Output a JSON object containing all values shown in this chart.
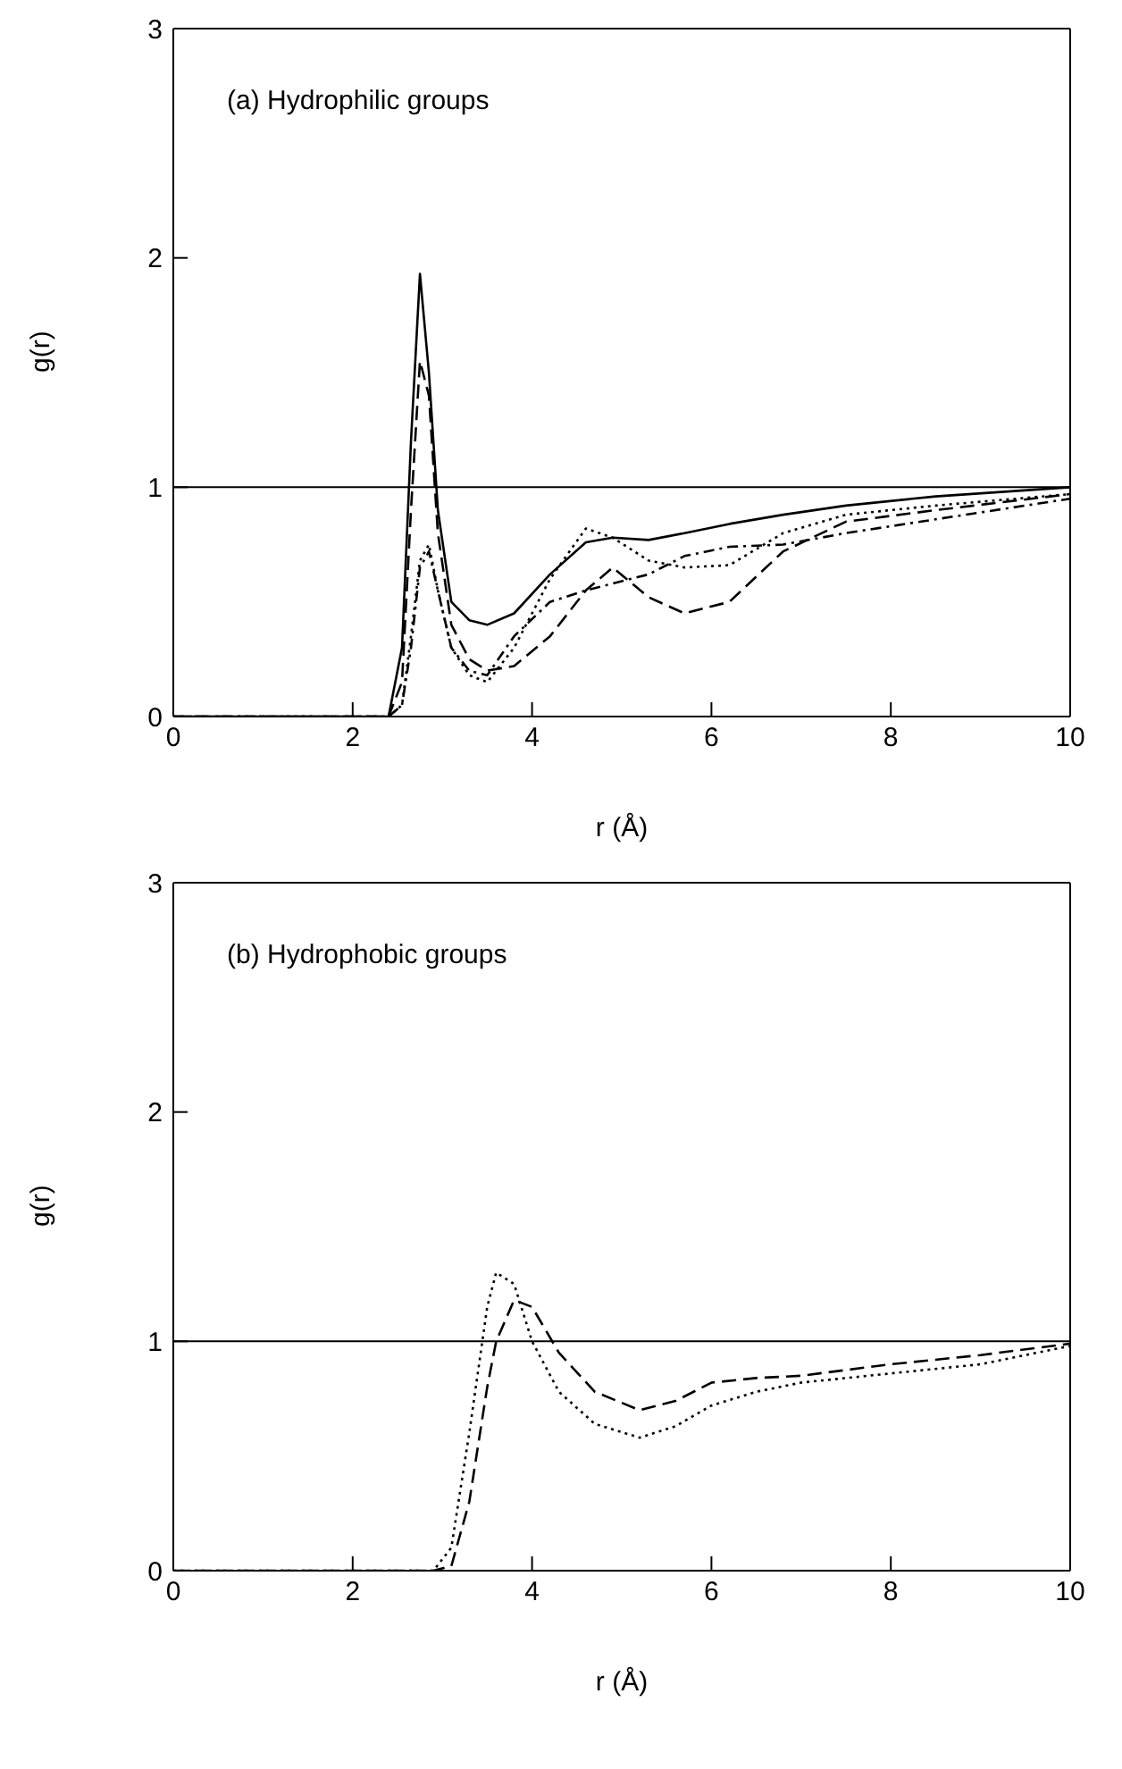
{
  "chart_data": [
    {
      "type": "line",
      "annotations": [
        "(a) Hydrophilic groups"
      ],
      "xlabel": "r (Å)",
      "ylabel": "g(r)",
      "xlim": [
        0,
        10
      ],
      "xticks": [
        0,
        2,
        4,
        6,
        8,
        10
      ],
      "ylim": [
        0,
        3
      ],
      "yticks": [
        0,
        1,
        2,
        3
      ],
      "grid": false,
      "legend": false,
      "marker": "none",
      "x": [
        0,
        2.4,
        2.55,
        2.65,
        2.75,
        2.85,
        2.95,
        3.1,
        3.3,
        3.5,
        3.8,
        4.2,
        4.6,
        4.9,
        5.3,
        5.7,
        6.2,
        6.8,
        7.5,
        8.5,
        10
      ],
      "series": [
        {
          "color": "#000000",
          "line_style": "solid",
          "values": [
            0,
            0,
            0.3,
            1.2,
            1.93,
            1.5,
            0.9,
            0.5,
            0.42,
            0.4,
            0.45,
            0.62,
            0.76,
            0.78,
            0.77,
            0.8,
            0.84,
            0.88,
            0.92,
            0.96,
            1.0
          ]
        },
        {
          "color": "#000000",
          "line_style": "dashed",
          "values": [
            0,
            0,
            0.15,
            0.9,
            1.55,
            1.4,
            0.8,
            0.4,
            0.25,
            0.2,
            0.22,
            0.35,
            0.55,
            0.65,
            0.52,
            0.45,
            0.5,
            0.72,
            0.85,
            0.9,
            0.97
          ]
        },
        {
          "color": "#000000",
          "line_style": "dotted",
          "values": [
            0,
            0,
            0.05,
            0.35,
            0.68,
            0.75,
            0.55,
            0.3,
            0.18,
            0.15,
            0.3,
            0.6,
            0.82,
            0.78,
            0.68,
            0.65,
            0.66,
            0.8,
            0.88,
            0.92,
            0.97
          ]
        },
        {
          "color": "#000000",
          "line_style": "dashdot",
          "values": [
            0,
            0,
            0.05,
            0.3,
            0.65,
            0.72,
            0.55,
            0.3,
            0.2,
            0.18,
            0.35,
            0.5,
            0.55,
            0.58,
            0.62,
            0.7,
            0.74,
            0.75,
            0.8,
            0.86,
            0.95
          ]
        }
      ],
      "ref_lines": [
        {
          "axis": "y",
          "value": 1,
          "color": "#000000"
        }
      ]
    },
    {
      "type": "line",
      "annotations": [
        "(b) Hydrophobic groups"
      ],
      "xlabel": "r (Å)",
      "ylabel": "g(r)",
      "xlim": [
        0,
        10
      ],
      "xticks": [
        0,
        2,
        4,
        6,
        8,
        10
      ],
      "ylim": [
        0,
        3
      ],
      "yticks": [
        0,
        1,
        2,
        3
      ],
      "grid": false,
      "legend": false,
      "marker": "none",
      "x": [
        0,
        2.9,
        3.1,
        3.3,
        3.5,
        3.6,
        3.8,
        4.0,
        4.3,
        4.7,
        5.2,
        5.6,
        6.0,
        6.5,
        7.0,
        8.0,
        9.0,
        10
      ],
      "series": [
        {
          "color": "#000000",
          "line_style": "dotted",
          "values": [
            0,
            0,
            0.1,
            0.6,
            1.15,
            1.3,
            1.25,
            1.0,
            0.78,
            0.64,
            0.58,
            0.63,
            0.72,
            0.78,
            0.82,
            0.86,
            0.9,
            0.98
          ]
        },
        {
          "color": "#000000",
          "line_style": "dashed",
          "values": [
            0,
            0,
            0.02,
            0.3,
            0.8,
            1.0,
            1.18,
            1.15,
            0.95,
            0.78,
            0.7,
            0.74,
            0.82,
            0.84,
            0.85,
            0.9,
            0.94,
            0.99
          ]
        }
      ],
      "ref_lines": [
        {
          "axis": "y",
          "value": 1,
          "color": "#000000"
        }
      ]
    }
  ]
}
